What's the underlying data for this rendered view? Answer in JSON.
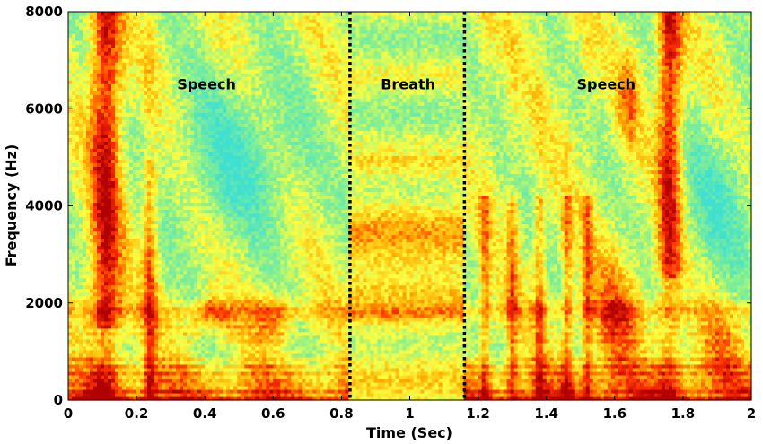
{
  "chart_data": {
    "type": "heatmap",
    "title": "",
    "xlabel": "Time (Sec)",
    "ylabel": "Frequency (Hz)",
    "xlim": [
      0,
      2
    ],
    "ylim": [
      0,
      8000
    ],
    "x_ticks": [
      0,
      0.2,
      0.4,
      0.6,
      0.8,
      1,
      1.2,
      1.4,
      1.6,
      1.8,
      2
    ],
    "x_tick_labels": [
      "0",
      "0.2",
      "0.4",
      "0.6",
      "0.8",
      "1",
      "1.2",
      "1.4",
      "1.6",
      "1.8",
      "2"
    ],
    "y_ticks": [
      0,
      2000,
      4000,
      6000,
      8000
    ],
    "y_tick_labels": [
      "0",
      "2000",
      "4000",
      "6000",
      "8000"
    ],
    "colormap": "jet",
    "grid": false,
    "segment_boundaries": [
      0.825,
      1.16
    ],
    "annotations": [
      {
        "text": "Speech",
        "x": 0.405,
        "y": 6400
      },
      {
        "text": "Breath",
        "x": 0.995,
        "y": 6400
      },
      {
        "text": "Speech",
        "x": 1.575,
        "y": 6400
      }
    ],
    "segments": [
      {
        "label": "Speech",
        "start": 0.0,
        "end": 0.825
      },
      {
        "label": "Breath",
        "start": 0.825,
        "end": 1.16
      },
      {
        "label": "Speech",
        "start": 1.16,
        "end": 2.0
      }
    ],
    "colors": {
      "low": "#40e0d0",
      "mid": "#ffff40",
      "high": "#ff3000",
      "max": "#b00000",
      "boundary_line": "#000000"
    }
  }
}
